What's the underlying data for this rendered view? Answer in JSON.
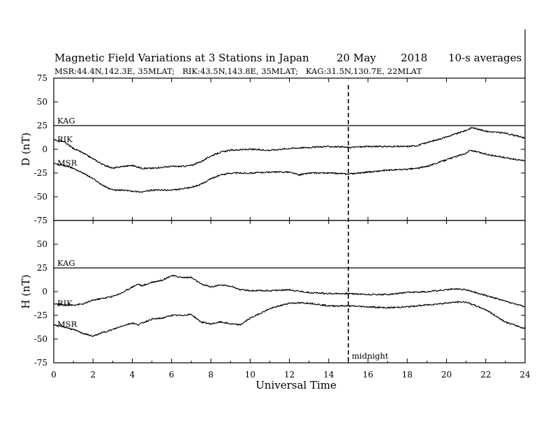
{
  "chart_data": {
    "type": "line",
    "title": {
      "main": "Magnetic Field Variations at 3 Stations in Japan",
      "date": "20 May",
      "year": "2018",
      "averaging": "10-s averages"
    },
    "subtitle": "MSR:44.4N,142.3E, 35MLAT;   RIK:43.5N,143.8E, 35MLAT;   KAG:31.5N,130.7E, 22MLAT",
    "xlabel": "Universal Time",
    "xlim": [
      0,
      24
    ],
    "x_ticks": [
      "0",
      "2",
      "4",
      "6",
      "8",
      "10",
      "12",
      "14",
      "16",
      "18",
      "20",
      "22",
      "24"
    ],
    "annotation": {
      "text": "midnight",
      "x": 15
    },
    "panels": [
      {
        "ylabel": "D (nT)",
        "ylim": [
          -75,
          75
        ],
        "y_ticks": [
          "75",
          "50",
          "25",
          "0",
          "-25",
          "-50",
          "-75"
        ],
        "series": [
          {
            "name": "KAG",
            "x": [
              0,
              24
            ],
            "values": [
              25,
              25
            ]
          },
          {
            "name": "RIK",
            "x": [
              0,
              0.5,
              1,
              1.5,
              2,
              2.5,
              3,
              3.5,
              4,
              4.5,
              5,
              5.5,
              6,
              6.5,
              7,
              7.5,
              8,
              8.5,
              9,
              10,
              11,
              12,
              13,
              14,
              15,
              16,
              17,
              18,
              18.5,
              19,
              20,
              21,
              21.3,
              22,
              23,
              24
            ],
            "values": [
              10,
              8,
              1,
              -4,
              -10,
              -16,
              -20,
              -18,
              -17,
              -20,
              -20,
              -19,
              -18,
              -18,
              -17,
              -13,
              -7,
              -3,
              -1,
              0,
              -1,
              1,
              2,
              3,
              2,
              3,
              3,
              3,
              4,
              7,
              13,
              20,
              23,
              19,
              17,
              12
            ]
          },
          {
            "name": "MSR",
            "x": [
              0,
              0.5,
              1,
              1.5,
              2,
              2.5,
              3,
              3.5,
              4,
              4.5,
              5,
              5.5,
              6,
              6.5,
              7,
              7.5,
              8,
              8.5,
              9,
              10,
              11,
              12,
              12.5,
              13,
              14,
              15,
              16,
              17,
              18,
              18.5,
              19,
              20,
              21,
              21.2,
              22,
              23,
              24
            ],
            "values": [
              -15,
              -17,
              -20,
              -25,
              -31,
              -38,
              -43,
              -43,
              -44,
              -45,
              -43,
              -43,
              -43,
              -42,
              -40,
              -37,
              -31,
              -27,
              -25,
              -25,
              -24,
              -24,
              -27,
              -25,
              -25,
              -26,
              -24,
              -22,
              -21,
              -20,
              -18,
              -11,
              -4,
              -1,
              -5,
              -9,
              -12
            ]
          }
        ]
      },
      {
        "ylabel": "H (nT)",
        "ylim": [
          -75,
          75
        ],
        "y_ticks": [
          "75",
          "50",
          "25",
          "0",
          "-25",
          "-50",
          "-75"
        ],
        "series": [
          {
            "name": "KAG",
            "x": [
              0,
              24
            ],
            "values": [
              25,
              25
            ]
          },
          {
            "name": "RIK",
            "x": [
              0,
              0.5,
              1,
              1.5,
              2,
              2.5,
              3,
              3.5,
              4,
              4.3,
              4.5,
              5,
              5.5,
              6,
              6.5,
              7,
              7.5,
              8,
              8.5,
              9,
              9.5,
              10,
              11,
              12,
              13,
              14,
              15,
              16,
              17,
              18,
              19,
              20,
              20.5,
              21,
              22,
              23,
              24
            ],
            "values": [
              -13,
              -14,
              -14,
              -13,
              -9,
              -7,
              -5,
              -1,
              5,
              8,
              6,
              10,
              12,
              17,
              15,
              15,
              8,
              5,
              7,
              6,
              2,
              1,
              1,
              2,
              -1,
              -2,
              -2,
              -3,
              -3,
              -1,
              0,
              2,
              3,
              2,
              -4,
              -10,
              -16
            ]
          },
          {
            "name": "MSR",
            "x": [
              0,
              0.5,
              1,
              1.5,
              2,
              2.5,
              3,
              3.5,
              4,
              4.3,
              4.5,
              5,
              5.5,
              6,
              6.5,
              7,
              7.5,
              8,
              8.5,
              9,
              9.5,
              10,
              11,
              12,
              13,
              14,
              15,
              16,
              17,
              18,
              19,
              20,
              20.5,
              21,
              22,
              23,
              24
            ],
            "values": [
              -35,
              -37,
              -40,
              -44,
              -47,
              -43,
              -40,
              -36,
              -33,
              -35,
              -33,
              -29,
              -28,
              -25,
              -25,
              -24,
              -32,
              -34,
              -32,
              -34,
              -35,
              -28,
              -18,
              -12,
              -12,
              -15,
              -15,
              -16,
              -17,
              -16,
              -14,
              -12,
              -11,
              -11,
              -19,
              -32,
              -39
            ]
          }
        ]
      }
    ]
  }
}
